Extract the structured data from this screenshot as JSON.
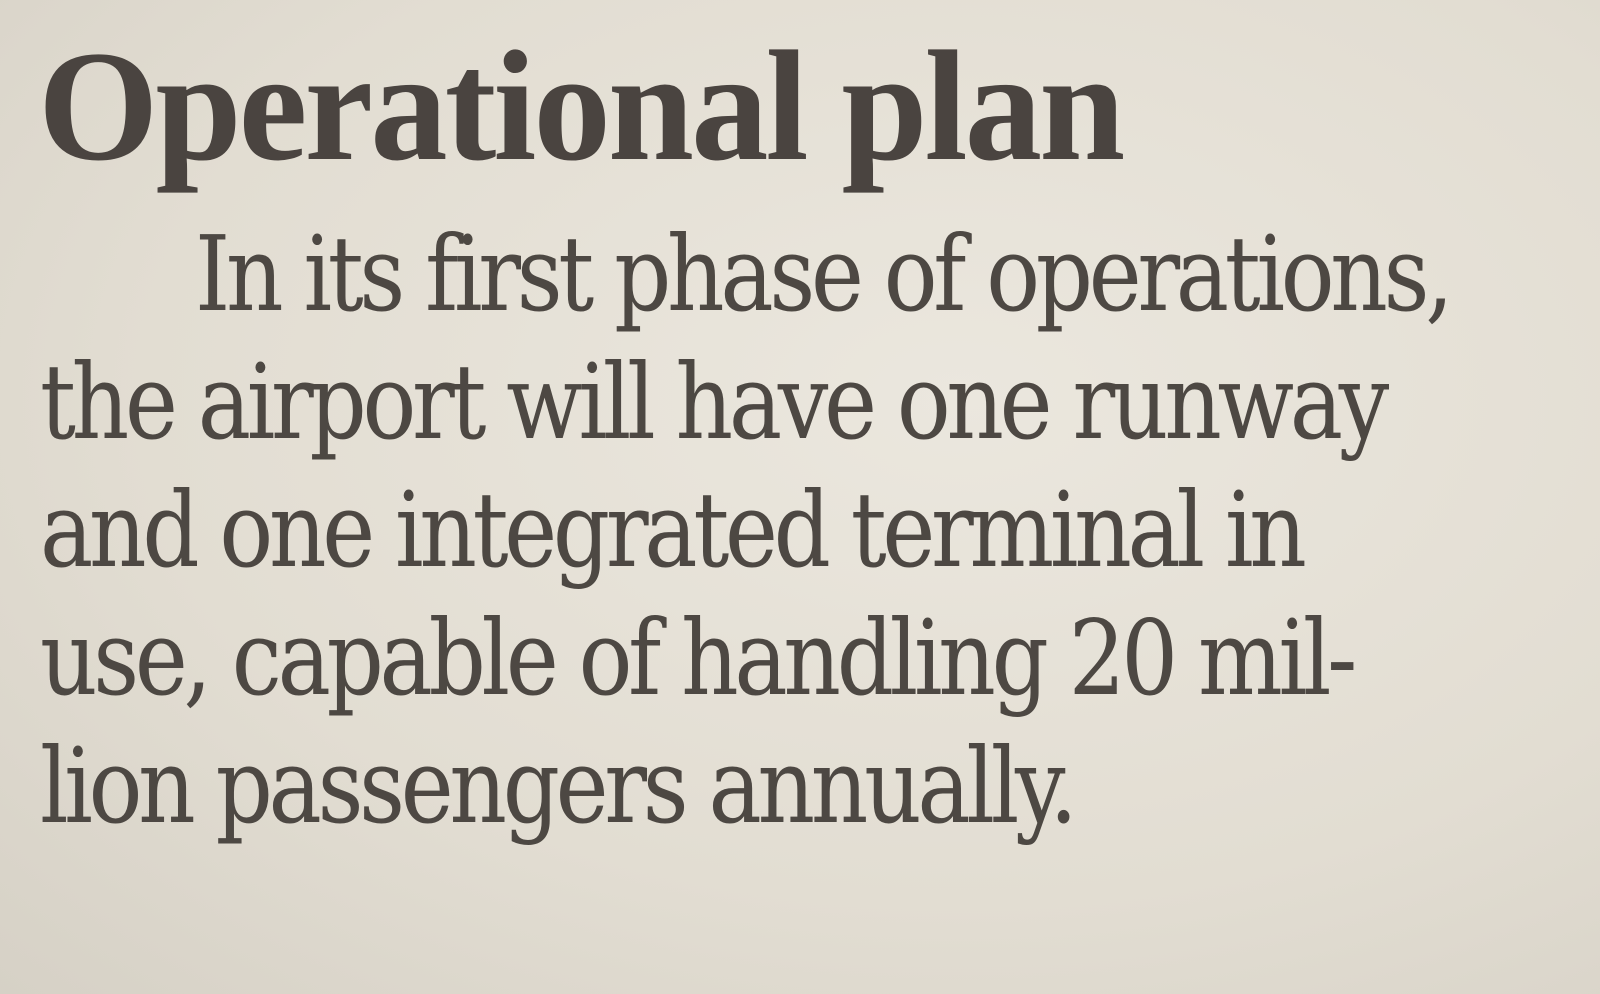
{
  "article": {
    "heading": "Operational plan",
    "lines": [
      "In its first phase of operations,",
      "the airport will have one runway",
      "and one integrated terminal in",
      "use, capable of handling 20 mil-",
      "lion passengers annually."
    ]
  },
  "colors": {
    "paper": "#e6e1d7",
    "ink": "#4b4641"
  }
}
